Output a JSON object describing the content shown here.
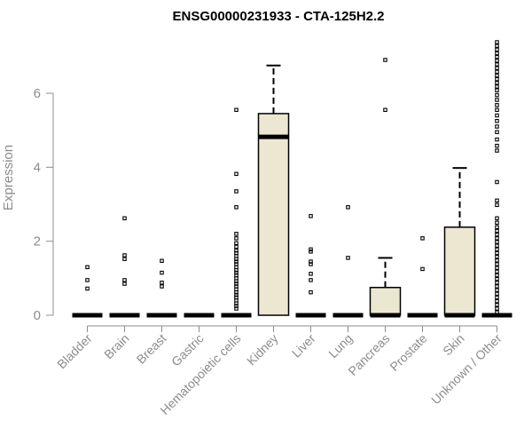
{
  "chart_data": {
    "type": "box",
    "title": "ENSG00000231933 - CTA-125H2.2",
    "xlabel": "",
    "ylabel": "Expression",
    "ylim": [
      0,
      7.5
    ],
    "yticks": [
      0,
      2,
      4,
      6
    ],
    "grid": false,
    "box_fill": "#ece7d0",
    "categories": [
      "Bladder",
      "Brain",
      "Breast",
      "Gastric",
      "Hematopoietic cells",
      "Kidney",
      "Liver",
      "Lung",
      "Pancreas",
      "Prostate",
      "Skin",
      "Unknown / Other"
    ],
    "boxes": [
      {
        "q1": 0,
        "median": 0,
        "q3": 0,
        "whisker_low": 0,
        "whisker_high": 0,
        "outliers": [
          1.3,
          0.95,
          0.72
        ]
      },
      {
        "q1": 0,
        "median": 0,
        "q3": 0,
        "whisker_low": 0,
        "whisker_high": 0,
        "outliers": [
          2.62,
          1.62,
          1.52,
          0.95,
          0.85
        ]
      },
      {
        "q1": 0,
        "median": 0,
        "q3": 0,
        "whisker_low": 0,
        "whisker_high": 0,
        "outliers": [
          1.47,
          1.15,
          0.88,
          0.78
        ]
      },
      {
        "q1": 0,
        "median": 0,
        "q3": 0,
        "whisker_low": 0,
        "whisker_high": 0,
        "outliers": []
      },
      {
        "q1": 0,
        "median": 0,
        "q3": 0,
        "whisker_low": 0,
        "whisker_high": 0,
        "outliers": [
          5.55,
          3.82,
          3.35,
          2.92,
          2.2,
          2.08,
          1.95,
          1.85,
          1.75,
          1.68,
          1.6,
          1.52,
          1.45,
          1.38,
          1.3,
          1.22,
          1.15,
          1.08,
          1.0,
          0.92,
          0.85,
          0.78,
          0.7,
          0.62,
          0.55,
          0.48,
          0.4,
          0.32,
          0.25,
          0.18
        ]
      },
      {
        "q1": 0,
        "median": 4.82,
        "q3": 5.45,
        "whisker_low": 0,
        "whisker_high": 6.75,
        "outliers": []
      },
      {
        "q1": 0,
        "median": 0,
        "q3": 0,
        "whisker_low": 0,
        "whisker_high": 0,
        "outliers": [
          2.68,
          1.78,
          1.72,
          1.45,
          1.38,
          1.12,
          0.95,
          0.62
        ]
      },
      {
        "q1": 0,
        "median": 0,
        "q3": 0,
        "whisker_low": 0,
        "whisker_high": 0,
        "outliers": [
          2.92,
          1.55
        ]
      },
      {
        "q1": 0,
        "median": 0,
        "q3": 0.75,
        "whisker_low": 0,
        "whisker_high": 1.55,
        "outliers": [
          6.9,
          5.55
        ]
      },
      {
        "q1": 0,
        "median": 0,
        "q3": 0,
        "whisker_low": 0,
        "whisker_high": 0,
        "outliers": [
          2.08,
          1.25
        ]
      },
      {
        "q1": 0,
        "median": 0,
        "q3": 2.38,
        "whisker_low": 0,
        "whisker_high": 3.98,
        "outliers": []
      },
      {
        "q1": 0,
        "median": 0,
        "q3": 0,
        "whisker_low": 0,
        "whisker_high": 0,
        "outliers": [
          7.38,
          7.28,
          7.18,
          7.08,
          6.98,
          6.88,
          6.78,
          6.68,
          6.58,
          6.48,
          6.38,
          6.28,
          6.18,
          6.08,
          5.95,
          5.82,
          5.68,
          5.55,
          5.4,
          5.25,
          5.1,
          4.95,
          4.75,
          4.58,
          4.45,
          3.6,
          3.1,
          2.98,
          2.62,
          2.5,
          2.38,
          2.28,
          2.18,
          2.08,
          1.98,
          1.88,
          1.78,
          1.68,
          1.58,
          1.48,
          1.38,
          1.28,
          1.18,
          1.08,
          0.98,
          0.88,
          0.78,
          0.68,
          0.58,
          0.48,
          0.38,
          0.28,
          0.18,
          0.08
        ]
      }
    ]
  }
}
